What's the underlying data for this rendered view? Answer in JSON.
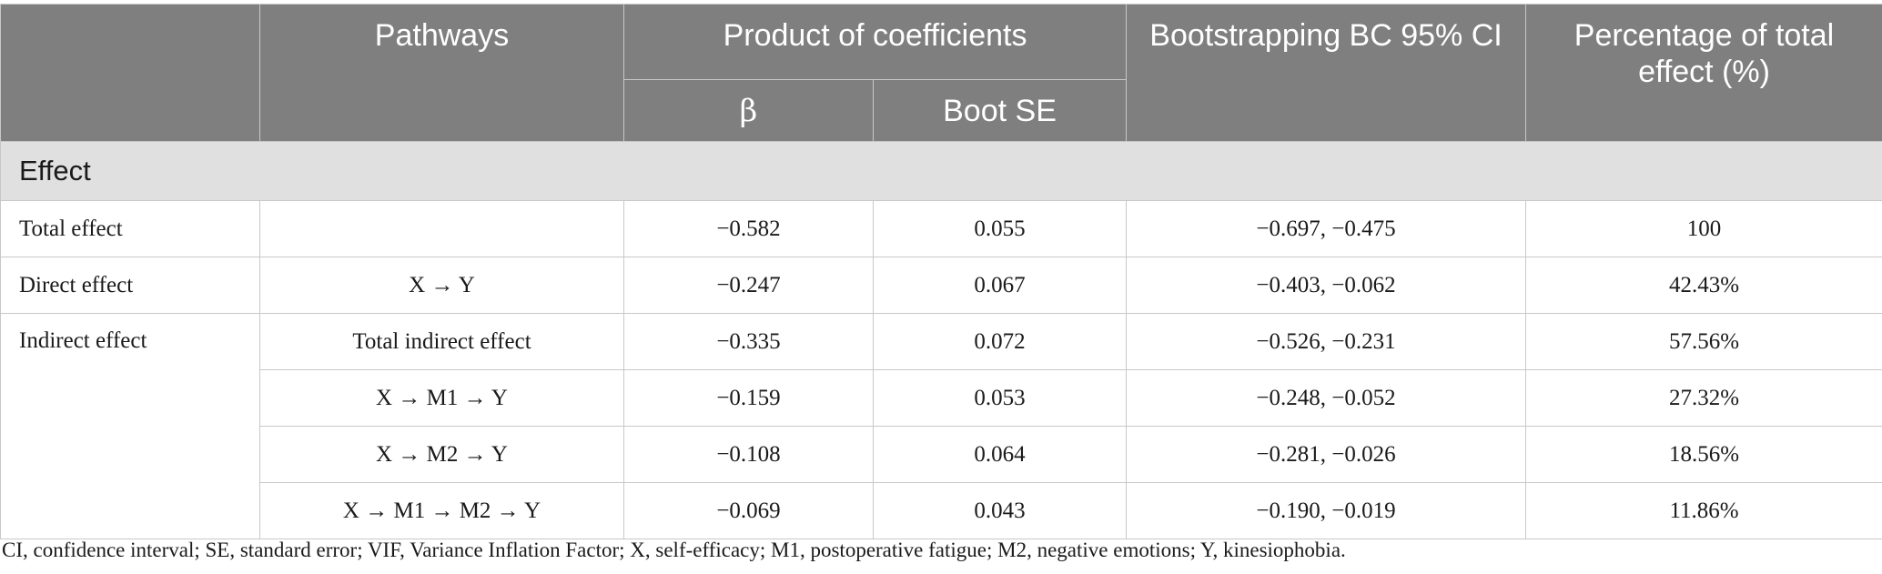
{
  "table": {
    "headers": {
      "pathways": "Pathways",
      "product_of_coefficients": "Product of coefficients",
      "beta": "β",
      "boot_se": "Boot SE",
      "bootstrapping": "Bootstrapping BC 95% CI",
      "percentage": "Percentage of total effect (%)"
    },
    "section_label": "Effect",
    "rows": [
      {
        "effect": "Total effect",
        "pathway": "",
        "beta": "−0.582",
        "boot_se": "0.055",
        "ci": "−0.697, −0.475",
        "percent": "100"
      },
      {
        "effect": "Direct effect",
        "pathway": "X → Y",
        "beta": "−0.247",
        "boot_se": "0.067",
        "ci": "−0.403, −0.062",
        "percent": "42.43%"
      },
      {
        "effect": "Indirect effect",
        "pathway": "Total indirect effect",
        "beta": "−0.335",
        "boot_se": "0.072",
        "ci": "−0.526, −0.231",
        "percent": "57.56%"
      },
      {
        "effect": "",
        "pathway": "X → M1 → Y",
        "beta": "−0.159",
        "boot_se": "0.053",
        "ci": "−0.248, −0.052",
        "percent": "27.32%"
      },
      {
        "effect": "",
        "pathway": "X → M2 → Y",
        "beta": "−0.108",
        "boot_se": "0.064",
        "ci": "−0.281, −0.026",
        "percent": "18.56%"
      },
      {
        "effect": "",
        "pathway": "X → M1 → M2 → Y",
        "beta": "−0.069",
        "boot_se": "0.043",
        "ci": "−0.190, −0.019",
        "percent": "11.86%"
      }
    ]
  },
  "footnote": "CI, confidence interval; SE, standard error; VIF, Variance Inflation Factor; X, self-efficacy; M1, postoperative fatigue; M2, negative emotions; Y, kinesiophobia.",
  "colors": {
    "header_bg": "#7f7f7f",
    "section_bg": "#e0e0e0",
    "border": "#c8c8c8"
  }
}
